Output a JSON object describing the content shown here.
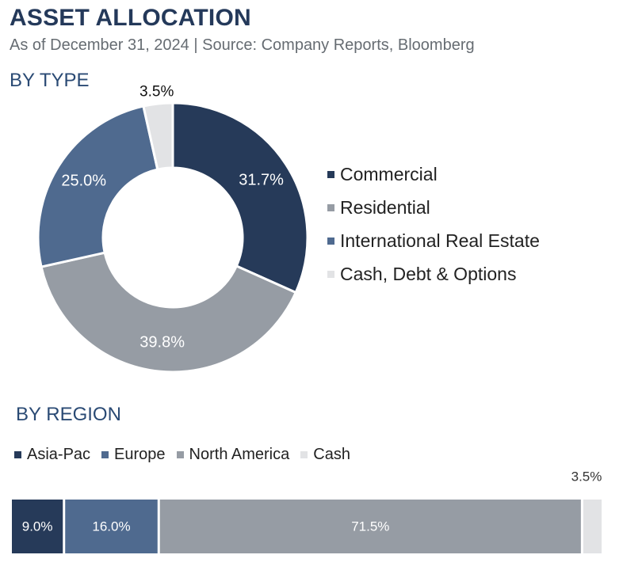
{
  "header": {
    "title": "ASSET ALLOCATION",
    "subtitle": "As of December 31, 2024  |  Source: Company Reports, Bloomberg"
  },
  "chart_data": [
    {
      "type": "pie",
      "style": "donut",
      "title": "BY TYPE",
      "categories": [
        "Commercial",
        "Residential",
        "International Real Estate",
        "Cash, Debt & Options"
      ],
      "values": [
        31.7,
        39.8,
        25.0,
        3.5
      ],
      "labels": [
        "31.7%",
        "39.8%",
        "25.0%",
        "3.5%"
      ],
      "colors": [
        "#263a59",
        "#969ca4",
        "#4f6a8f",
        "#e2e3e5"
      ],
      "legend_position": "right"
    },
    {
      "type": "bar",
      "style": "stacked-horizontal-100%",
      "title": "BY REGION",
      "categories": [
        "Asia-Pac",
        "Europe",
        "North America",
        "Cash"
      ],
      "values": [
        9.0,
        16.0,
        71.5,
        3.5
      ],
      "labels": [
        "9.0%",
        "16.0%",
        "71.5%",
        "3.5%"
      ],
      "colors": [
        "#263a59",
        "#4f6a8f",
        "#969ca4",
        "#e2e3e5"
      ],
      "legend_position": "top"
    }
  ]
}
